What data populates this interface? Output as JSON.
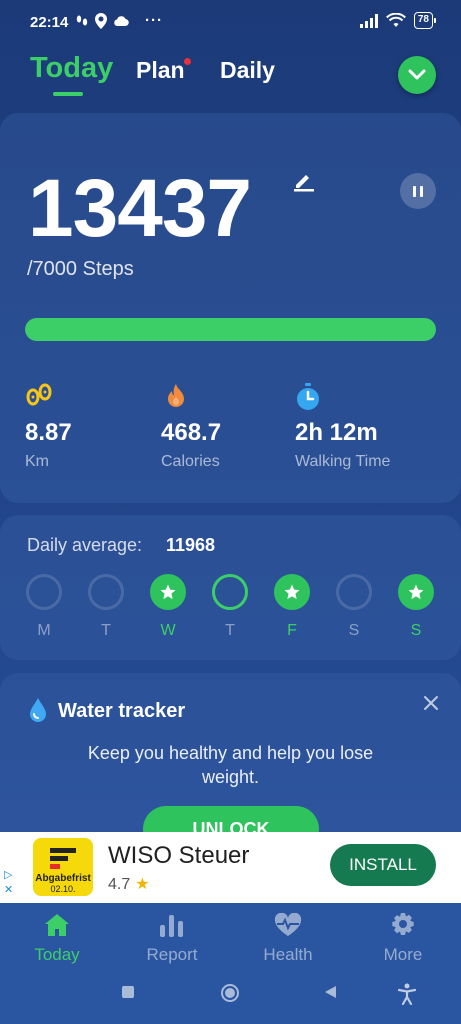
{
  "status_bar": {
    "time": "22:14",
    "battery": "78"
  },
  "tabs": {
    "today": "Today",
    "plan": "Plan",
    "daily": "Daily"
  },
  "steps": {
    "count": "13437",
    "goal": "/7000 Steps",
    "progress_fraction": 1.0
  },
  "stats": [
    {
      "icon": "footprint-icon",
      "value": "8.87",
      "label": "Km",
      "color": "#f5c518"
    },
    {
      "icon": "flame-icon",
      "value": "468.7",
      "label": "Calories",
      "color": "#f08a3c"
    },
    {
      "icon": "stopwatch-icon",
      "value": "2h 12m",
      "label": "Walking Time",
      "color": "#35a6f0"
    }
  ],
  "daily_average": {
    "label": "Daily average:",
    "value": "11968",
    "days": [
      {
        "label": "M",
        "status": "empty"
      },
      {
        "label": "T",
        "status": "empty"
      },
      {
        "label": "W",
        "status": "done"
      },
      {
        "label": "T",
        "status": "today"
      },
      {
        "label": "F",
        "status": "done"
      },
      {
        "label": "S",
        "status": "empty"
      },
      {
        "label": "S",
        "status": "done"
      }
    ]
  },
  "water_tracker": {
    "title": "Water tracker",
    "description": "Keep you healthy and help you lose weight.",
    "unlock_label": "UNLOCK"
  },
  "ad": {
    "app_name": "WISO Steuer",
    "rating": "4.7",
    "install_label": "INSTALL",
    "logo_line1": "Abgabefrist",
    "logo_line2": "02.10."
  },
  "bottom_nav": {
    "today": "Today",
    "report": "Report",
    "health": "Health",
    "more": "More"
  },
  "colors": {
    "accent": "#3ccf68",
    "background": "#214489",
    "install": "#157a4f"
  }
}
